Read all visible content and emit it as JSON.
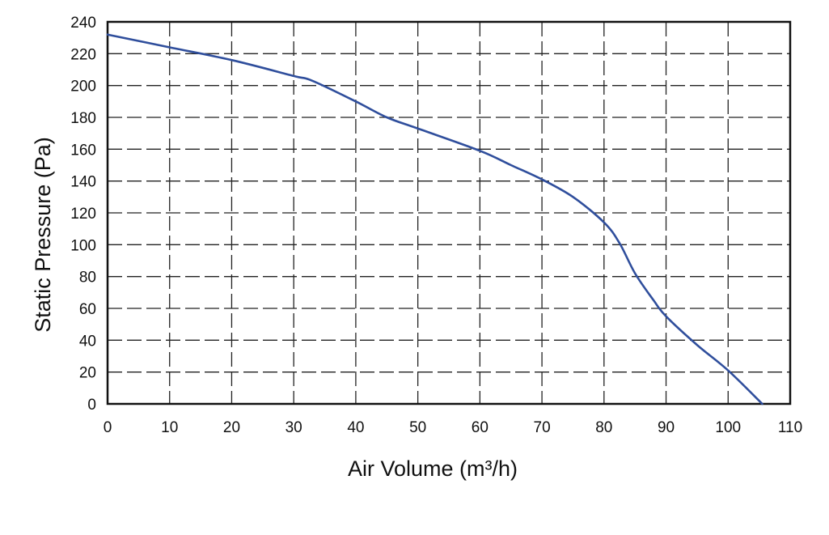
{
  "chart_data": {
    "type": "line",
    "title": "",
    "xlabel": "Air Volume (m³/h)",
    "ylabel": "Static Pressure (Pa)",
    "xlim": [
      0,
      110
    ],
    "ylim": [
      0,
      240
    ],
    "xticks": [
      "0",
      "10",
      "20",
      "30",
      "40",
      "50",
      "60",
      "70",
      "80",
      "90",
      "100",
      "110"
    ],
    "yticks": [
      "0",
      "20",
      "40",
      "60",
      "80",
      "100",
      "120",
      "140",
      "160",
      "180",
      "200",
      "220",
      "240"
    ],
    "grid": true,
    "legend": "none",
    "series": [
      {
        "color": "#2f4e9c",
        "x": [
          0,
          10,
          20,
          30,
          33,
          40,
          45,
          50,
          60,
          65,
          70,
          75,
          80,
          82.5,
          85,
          88,
          90,
          95,
          100,
          105.5
        ],
        "y": [
          232,
          224,
          216,
          206,
          203,
          190,
          180,
          173,
          159,
          150,
          141,
          130,
          114,
          101,
          82,
          65,
          55,
          37,
          21,
          0
        ]
      }
    ]
  }
}
